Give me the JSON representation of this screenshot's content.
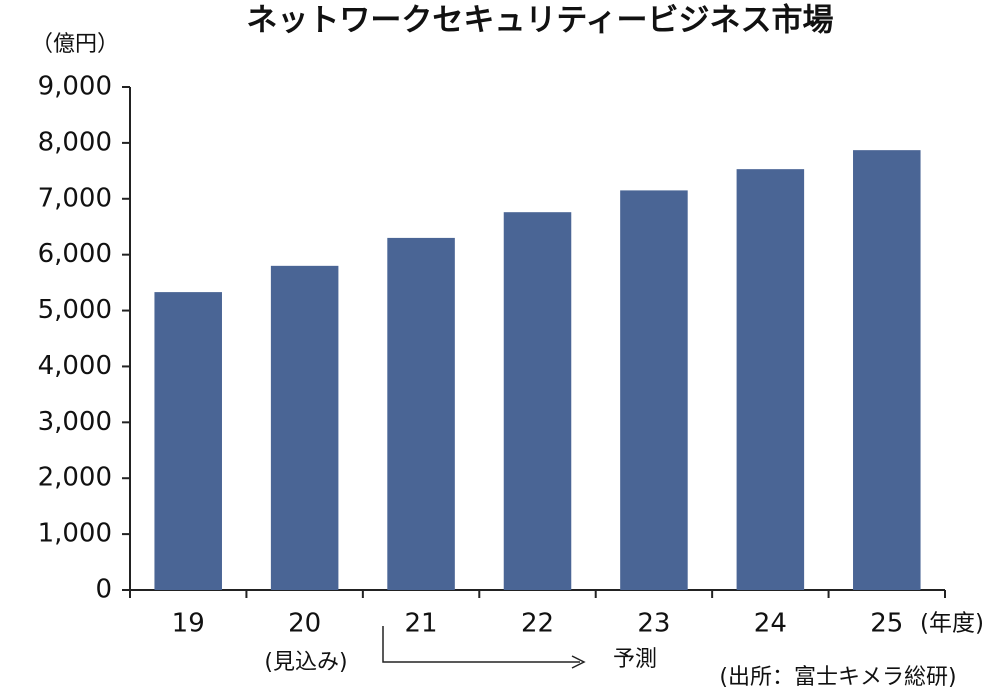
{
  "chart_data": {
    "type": "bar",
    "title": "ネットワークセキュリティービジネス市場",
    "y_unit_label": "（億円）",
    "x_unit_label": "(年度)",
    "categories": [
      "19",
      "20",
      "21",
      "22",
      "23",
      "24",
      "25"
    ],
    "values": [
      5330,
      5800,
      6300,
      6760,
      7150,
      7530,
      7870
    ],
    "color": "#4a6595",
    "ylim": [
      0,
      9000
    ],
    "yticks": [
      0,
      {
        "value": 1000,
        "label": "1,000"
      },
      {
        "value": 2000,
        "label": "2,000"
      },
      {
        "value": 3000,
        "label": "3,000"
      },
      {
        "value": 4000,
        "label": "4,000"
      },
      {
        "value": 5000,
        "label": "5,000"
      },
      {
        "value": 6000,
        "label": "6,000"
      },
      {
        "value": 7000,
        "label": "7,000"
      },
      {
        "value": 8000,
        "label": "8,000"
      },
      {
        "value": 9000,
        "label": "9,000"
      }
    ],
    "estimate_label": "(見込み)",
    "forecast_label": "予測",
    "source": "(出所：富士キメラ総研)"
  }
}
